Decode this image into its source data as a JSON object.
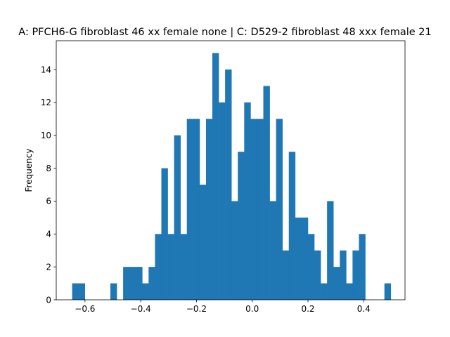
{
  "chart_data": {
    "type": "bar",
    "title": "A: PFCH6-G fibroblast 46 xx female none | C: D529-2 fibroblast 48 xxx female 21",
    "xlabel": "",
    "ylabel": "Frequency",
    "xlim": [
      -0.703,
      0.548
    ],
    "ylim": [
      0,
      15.75
    ],
    "xticks": [
      -0.6,
      -0.4,
      -0.2,
      0.0,
      0.2,
      0.4
    ],
    "xtick_labels": [
      "−0.6",
      "−0.4",
      "−0.2",
      "0.0",
      "0.2",
      "0.4"
    ],
    "yticks": [
      0,
      2,
      4,
      6,
      8,
      10,
      12,
      14
    ],
    "ytick_labels": [
      "0",
      "2",
      "4",
      "6",
      "8",
      "10",
      "12",
      "14"
    ],
    "bar_color": "#1f77b4",
    "bin_start": -0.646,
    "bin_width": 0.02286,
    "values": [
      1,
      1,
      0,
      0,
      0,
      0,
      1,
      0,
      2,
      2,
      2,
      1,
      2,
      4,
      8,
      4,
      10,
      4,
      11,
      11,
      7,
      11,
      15,
      12,
      14,
      6,
      9,
      12,
      11,
      11,
      13,
      6,
      11,
      3,
      9,
      5,
      5,
      4,
      3,
      1,
      6,
      2,
      3,
      1,
      3,
      4,
      0,
      0,
      0,
      1
    ],
    "grid": false,
    "legend": "none"
  }
}
